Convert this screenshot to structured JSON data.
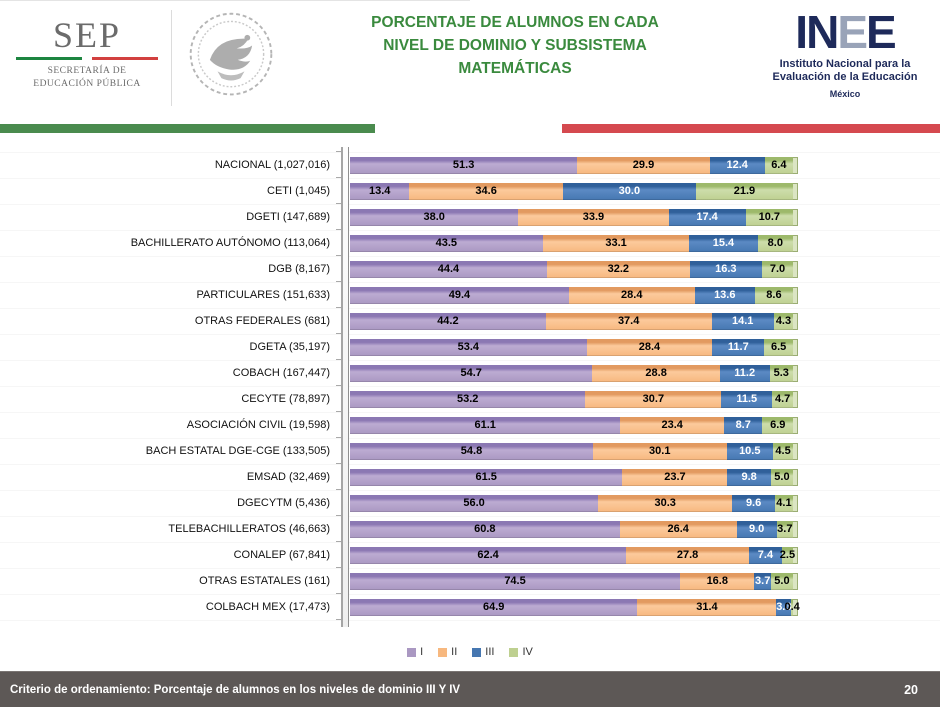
{
  "header": {
    "sep": {
      "acronym": "SEP",
      "dept_line1": "SECRETARÍA DE",
      "dept_line2": "EDUCACIÓN PÚBLICA"
    },
    "title_line1": "PORCENTAJE DE ALUMNOS EN CADA",
    "title_line2": "NIVEL DE DOMINIO Y SUBSISTEMA",
    "title_line3": "MATEMÁTICAS",
    "title_color": "#3a8a3e",
    "inee": {
      "logo_letters": [
        "I",
        "N",
        "E",
        "E"
      ],
      "subtitle_line1": "Instituto Nacional para la",
      "subtitle_line2": "Evaluación de la Educación",
      "country": "México"
    },
    "accent_bar_green": "#4a8b4e",
    "accent_bar_red": "#d5494f"
  },
  "chart_data": {
    "type": "bar",
    "stacked": true,
    "orientation": "horizontal",
    "title": "PORCENTAJE DE ALUMNOS EN CADA NIVEL DE DOMINIO Y SUBSISTEMA — MATEMÁTICAS",
    "unit": "percent",
    "xlim": [
      0,
      100
    ],
    "grid": false,
    "legend_position": "bottom",
    "value_label_format": "one_decimal",
    "categories": [
      "NACIONAL (1,027,016)",
      "CETI (1,045)",
      "DGETI (147,689)",
      "BACHILLERATO AUTÓNOMO (113,064)",
      "DGB (8,167)",
      "PARTICULARES (151,633)",
      "OTRAS FEDERALES (681)",
      "DGETA (35,197)",
      "COBACH (167,447)",
      "CECYTE (78,897)",
      "ASOCIACIÓN CIVIL (19,598)",
      "BACH ESTATAL DGE-CGE (133,505)",
      "EMSAD (32,469)",
      "DGECYTM (5,436)",
      "TELEBACHILLERATOS (46,663)",
      "CONALEP (67,841)",
      "OTRAS ESTATALES (161)",
      "COLBACH MEX (17,473)"
    ],
    "series": [
      {
        "name": "I",
        "color": "#aa98c2",
        "gradient": [
          "#8b78b3",
          "#bcabd2",
          "#aa98c2"
        ],
        "label_color": "#000000",
        "values": [
          51.3,
          13.4,
          38.0,
          43.5,
          44.4,
          49.4,
          44.2,
          53.4,
          54.7,
          53.2,
          61.1,
          54.8,
          61.5,
          56.0,
          60.8,
          62.4,
          74.5,
          64.9
        ]
      },
      {
        "name": "II",
        "color": "#f7b87f",
        "gradient": [
          "#e29a60",
          "#fcca9c",
          "#f7b87f"
        ],
        "label_color": "#000000",
        "values": [
          29.9,
          34.6,
          33.9,
          33.1,
          32.2,
          28.4,
          37.4,
          28.4,
          28.8,
          30.7,
          23.4,
          30.1,
          23.7,
          30.3,
          26.4,
          27.8,
          16.8,
          31.4
        ]
      },
      {
        "name": "III",
        "color": "#4677b1",
        "gradient": [
          "#30609a",
          "#5b8ac4",
          "#4677b1"
        ],
        "label_color": "#ffffff",
        "values": [
          12.4,
          30.0,
          17.4,
          15.4,
          16.3,
          13.6,
          14.1,
          11.7,
          11.2,
          11.5,
          8.7,
          10.5,
          9.8,
          9.6,
          9.0,
          7.4,
          3.7,
          3.3
        ]
      },
      {
        "name": "IV",
        "color": "#bed090",
        "gradient": [
          "#9db96b",
          "#cdddab",
          "#bed090"
        ],
        "label_color": "#000000",
        "values": [
          6.4,
          21.9,
          10.7,
          8.0,
          7.0,
          8.6,
          4.3,
          6.5,
          5.3,
          4.7,
          6.9,
          4.5,
          5.0,
          4.1,
          3.7,
          2.5,
          5.0,
          0.4
        ]
      }
    ]
  },
  "footer": {
    "criteria": "Criterio de ordenamiento:  Porcentaje de alumnos en  los niveles  de dominio III Y IV",
    "page_number": "20"
  }
}
